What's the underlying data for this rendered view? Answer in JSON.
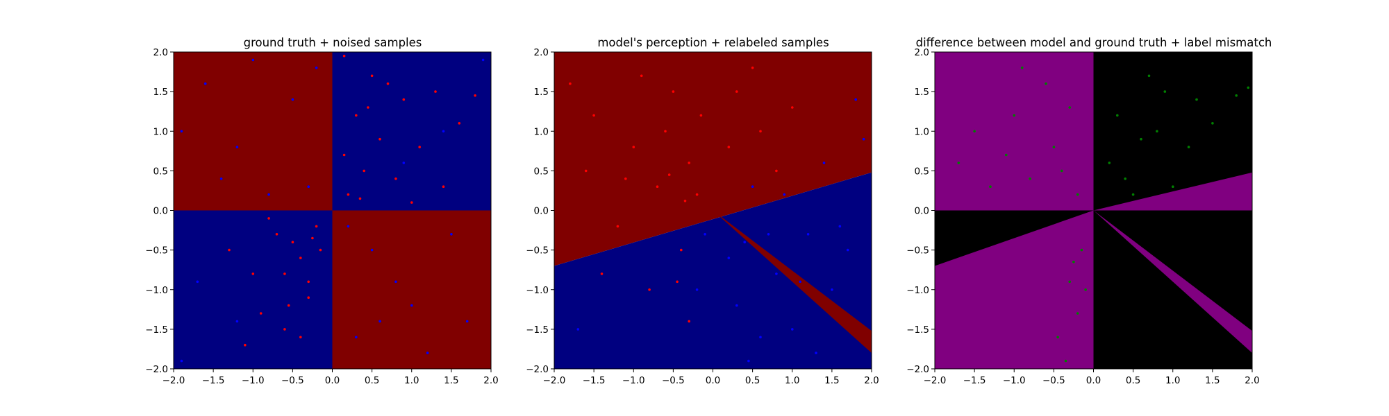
{
  "figure": {
    "panels": [
      {
        "id": "ground-truth",
        "title": "ground truth + noised samples",
        "regions": [
          {
            "name": "q2",
            "color": "red",
            "polygon": [
              [
                -2,
                0
              ],
              [
                0,
                0
              ],
              [
                0,
                2
              ],
              [
                -2,
                2
              ]
            ]
          },
          {
            "name": "q1",
            "color": "blue",
            "polygon": [
              [
                0,
                0
              ],
              [
                2,
                0
              ],
              [
                2,
                2
              ],
              [
                0,
                2
              ]
            ]
          },
          {
            "name": "q3",
            "color": "blue",
            "polygon": [
              [
                -2,
                -2
              ],
              [
                0,
                -2
              ],
              [
                0,
                0
              ],
              [
                -2,
                0
              ]
            ]
          },
          {
            "name": "q4",
            "color": "red",
            "polygon": [
              [
                0,
                -2
              ],
              [
                2,
                -2
              ],
              [
                2,
                0
              ],
              [
                0,
                0
              ]
            ]
          }
        ]
      },
      {
        "id": "model-perception",
        "title": "model's perception + relabeled samples",
        "regions": [
          {
            "name": "upper",
            "color": "red",
            "polygon": [
              [
                -2,
                -0.7
              ],
              [
                2,
                0.48
              ],
              [
                2,
                2
              ],
              [
                -2,
                2
              ]
            ]
          },
          {
            "name": "lower",
            "color": "blue",
            "polygon": [
              [
                -2,
                -2
              ],
              [
                2,
                -2
              ],
              [
                2,
                0.48
              ],
              [
                -2,
                -0.7
              ]
            ]
          },
          {
            "name": "wedge",
            "color": "red",
            "polygon": [
              [
                0,
                0
              ],
              [
                2,
                -1.52
              ],
              [
                2,
                -1.8
              ]
            ]
          }
        ]
      },
      {
        "id": "difference",
        "title": "difference between model and ground truth + label mismatch",
        "regions": [
          {
            "name": "background",
            "color": "black",
            "polygon": [
              [
                -2,
                -2
              ],
              [
                2,
                -2
              ],
              [
                2,
                2
              ],
              [
                -2,
                2
              ]
            ]
          },
          {
            "name": "q2-mismatch",
            "color": "purple",
            "polygon": [
              [
                -2,
                0
              ],
              [
                0,
                0
              ],
              [
                0,
                2
              ],
              [
                -2,
                2
              ]
            ]
          },
          {
            "name": "q1-wedge",
            "color": "purple",
            "polygon": [
              [
                0,
                0
              ],
              [
                2,
                0.48
              ],
              [
                2,
                0
              ]
            ]
          },
          {
            "name": "q3-mismatch",
            "color": "purple",
            "polygon": [
              [
                -2,
                -2
              ],
              [
                0,
                -2
              ],
              [
                0,
                0
              ],
              [
                -2,
                -0.7
              ]
            ]
          },
          {
            "name": "q4-wedge",
            "color": "purple",
            "polygon": [
              [
                0,
                0
              ],
              [
                2,
                -1.52
              ],
              [
                2,
                -1.8
              ]
            ]
          }
        ]
      }
    ]
  },
  "colors": {
    "red": "#800000",
    "blue": "#000080",
    "purple": "#800080",
    "black": "#000000",
    "point_red": "#ff0000",
    "point_blue": "#0000ff",
    "point_green": "#008000"
  },
  "chart_data": [
    {
      "type": "scatter",
      "title": "ground truth + noised samples",
      "xlim": [
        -2,
        2
      ],
      "ylim": [
        -2,
        2
      ],
      "xticks": [
        "−2.0",
        "−1.5",
        "−1.0",
        "−0.5",
        "0.0",
        "0.5",
        "1.0",
        "1.5",
        "2.0"
      ],
      "yticks": [
        "−2.0",
        "−1.5",
        "−1.0",
        "−0.5",
        "0.0",
        "0.5",
        "1.0",
        "1.5",
        "2.0"
      ],
      "background": "class map: red where x·y < 0 (quadrants II and IV), blue where x·y > 0",
      "series": [
        {
          "color": "red",
          "points": [
            [
              0.3,
              1.2
            ],
            [
              0.6,
              0.9
            ],
            [
              0.9,
              1.4
            ],
            [
              0.4,
              0.5
            ],
            [
              1.1,
              0.8
            ],
            [
              0.5,
              1.7
            ],
            [
              1.4,
              0.3
            ],
            [
              0.2,
              0.2
            ],
            [
              0.8,
              0.4
            ],
            [
              1.6,
              1.1
            ],
            [
              0.7,
              1.6
            ],
            [
              1.3,
              1.5
            ],
            [
              1.8,
              1.45
            ],
            [
              0.15,
              0.7
            ],
            [
              1.0,
              0.1
            ],
            [
              -0.4,
              -0.6
            ],
            [
              -0.7,
              -0.3
            ],
            [
              -0.3,
              -1.1
            ],
            [
              -1.0,
              -0.8
            ],
            [
              -0.5,
              -0.4
            ],
            [
              -0.2,
              -0.2
            ],
            [
              -0.9,
              -1.3
            ],
            [
              -0.6,
              -1.5
            ],
            [
              -0.3,
              -0.9
            ],
            [
              -1.3,
              -0.5
            ],
            [
              -0.8,
              -0.1
            ],
            [
              -0.4,
              -1.6
            ],
            [
              -1.1,
              -1.7
            ],
            [
              -0.15,
              -0.5
            ],
            [
              -0.6,
              -0.8
            ],
            [
              0.15,
              1.95
            ],
            [
              0.45,
              1.3
            ],
            [
              0.35,
              0.15
            ],
            [
              -0.25,
              -0.35
            ],
            [
              -0.55,
              -1.2
            ]
          ]
        },
        {
          "color": "blue",
          "points": [
            [
              -0.5,
              1.4
            ],
            [
              -1.2,
              0.8
            ],
            [
              -0.3,
              0.3
            ],
            [
              -1.6,
              1.6
            ],
            [
              -0.8,
              0.2
            ],
            [
              -1.9,
              1.0
            ],
            [
              -0.2,
              1.8
            ],
            [
              -1.0,
              1.9
            ],
            [
              0.5,
              -0.5
            ],
            [
              1.0,
              -1.2
            ],
            [
              0.3,
              -1.6
            ],
            [
              1.5,
              -0.3
            ],
            [
              0.8,
              -0.9
            ],
            [
              1.2,
              -1.8
            ],
            [
              0.2,
              -0.2
            ],
            [
              1.7,
              -1.4
            ],
            [
              -1.7,
              -0.9
            ],
            [
              -1.2,
              -1.4
            ],
            [
              0.9,
              0.6
            ],
            [
              1.4,
              1.0
            ],
            [
              -1.9,
              -1.9
            ],
            [
              1.9,
              1.9
            ],
            [
              0.6,
              -1.4
            ],
            [
              -1.4,
              0.4
            ]
          ]
        }
      ]
    },
    {
      "type": "scatter",
      "title": "model's perception + relabeled samples",
      "xlim": [
        -2,
        2
      ],
      "ylim": [
        -2,
        2
      ],
      "xticks": [
        "−2.0",
        "−1.5",
        "−1.0",
        "−0.5",
        "0.0",
        "0.5",
        "1.0",
        "1.5",
        "2.0"
      ],
      "yticks": [
        "−2.0",
        "−1.5",
        "−1.0",
        "−0.5",
        "0.0",
        "0.5",
        "1.0",
        "1.5",
        "2.0"
      ],
      "background": "class map: red above the line through (−2, −0.7) and (2, 0.48) plus a thin red wedge from (0, 0) toward (2, −1.66); blue elsewhere",
      "series": [
        {
          "color": "red",
          "points": [
            [
              -1.5,
              1.2
            ],
            [
              -1.0,
              0.8
            ],
            [
              -0.5,
              1.5
            ],
            [
              -0.3,
              0.6
            ],
            [
              -0.7,
              0.3
            ],
            [
              -1.2,
              -0.2
            ],
            [
              -0.6,
              1.0
            ],
            [
              -0.2,
              0.2
            ],
            [
              -1.6,
              0.5
            ],
            [
              -0.9,
              1.7
            ],
            [
              -0.4,
              -0.5
            ],
            [
              -0.8,
              -1.0
            ],
            [
              -1.4,
              -0.8
            ],
            [
              -0.3,
              -1.4
            ],
            [
              0.3,
              1.5
            ],
            [
              0.6,
              1.0
            ],
            [
              0.5,
              1.8
            ],
            [
              0.2,
              0.8
            ],
            [
              1.0,
              1.3
            ],
            [
              0.8,
              0.5
            ],
            [
              -1.8,
              1.6
            ],
            [
              -0.35,
              0.12
            ],
            [
              -0.45,
              -0.9
            ],
            [
              -1.1,
              0.4
            ],
            [
              -0.55,
              0.45
            ],
            [
              -0.15,
              1.2
            ]
          ]
        },
        {
          "color": "blue",
          "points": [
            [
              0.4,
              -0.4
            ],
            [
              0.8,
              -0.8
            ],
            [
              1.2,
              -0.3
            ],
            [
              0.3,
              -1.2
            ],
            [
              1.5,
              -1.0
            ],
            [
              0.6,
              -1.6
            ],
            [
              1.0,
              -1.5
            ],
            [
              1.7,
              -0.5
            ],
            [
              0.2,
              -0.6
            ],
            [
              1.3,
              -1.8
            ],
            [
              0.5,
              0.3
            ],
            [
              1.4,
              0.6
            ],
            [
              1.8,
              1.4
            ],
            [
              1.9,
              0.9
            ],
            [
              0.9,
              0.2
            ],
            [
              -0.1,
              -0.3
            ],
            [
              -0.2,
              -1.0
            ],
            [
              1.6,
              -0.2
            ],
            [
              0.7,
              -0.3
            ],
            [
              1.1,
              -0.9
            ],
            [
              -1.7,
              -1.5
            ],
            [
              0.45,
              -1.9
            ]
          ]
        }
      ]
    },
    {
      "type": "scatter",
      "title": "difference between model and ground truth + label mismatch",
      "xlim": [
        -2,
        2
      ],
      "ylim": [
        -2,
        2
      ],
      "xticks": [
        "−2.0",
        "−1.5",
        "−1.0",
        "−0.5",
        "0.0",
        "0.5",
        "1.0",
        "1.5",
        "2.0"
      ],
      "yticks": [
        "−2.0",
        "−1.5",
        "−1.0",
        "−0.5",
        "0.0",
        "0.5",
        "1.0",
        "1.5",
        "2.0"
      ],
      "background": "purple where model and ground truth disagree, black where they agree",
      "series": [
        {
          "color": "green",
          "points": [
            [
              -1.5,
              1.0
            ],
            [
              -1.0,
              1.2
            ],
            [
              -0.5,
              0.8
            ],
            [
              -0.8,
              0.4
            ],
            [
              -1.3,
              0.3
            ],
            [
              -0.3,
              1.3
            ],
            [
              -0.6,
              1.6
            ],
            [
              -1.7,
              0.6
            ],
            [
              -0.2,
              0.2
            ],
            [
              -1.1,
              0.7
            ],
            [
              -0.4,
              0.5
            ],
            [
              -0.9,
              1.8
            ],
            [
              0.3,
              1.2
            ],
            [
              0.6,
              0.9
            ],
            [
              0.4,
              0.4
            ],
            [
              0.9,
              1.5
            ],
            [
              0.2,
              0.6
            ],
            [
              1.2,
              0.8
            ],
            [
              0.7,
              1.7
            ],
            [
              1.5,
              1.1
            ],
            [
              0.5,
              0.2
            ],
            [
              1.0,
              0.3
            ],
            [
              0.8,
              1.0
            ],
            [
              1.3,
              1.4
            ],
            [
              1.8,
              1.45
            ],
            [
              1.95,
              1.55
            ],
            [
              -0.15,
              -0.5
            ],
            [
              -0.3,
              -0.9
            ],
            [
              -0.2,
              -1.3
            ],
            [
              -0.45,
              -1.6
            ],
            [
              -0.35,
              -1.9
            ],
            [
              -0.1,
              -1.0
            ],
            [
              -0.25,
              -0.65
            ]
          ]
        }
      ]
    }
  ]
}
